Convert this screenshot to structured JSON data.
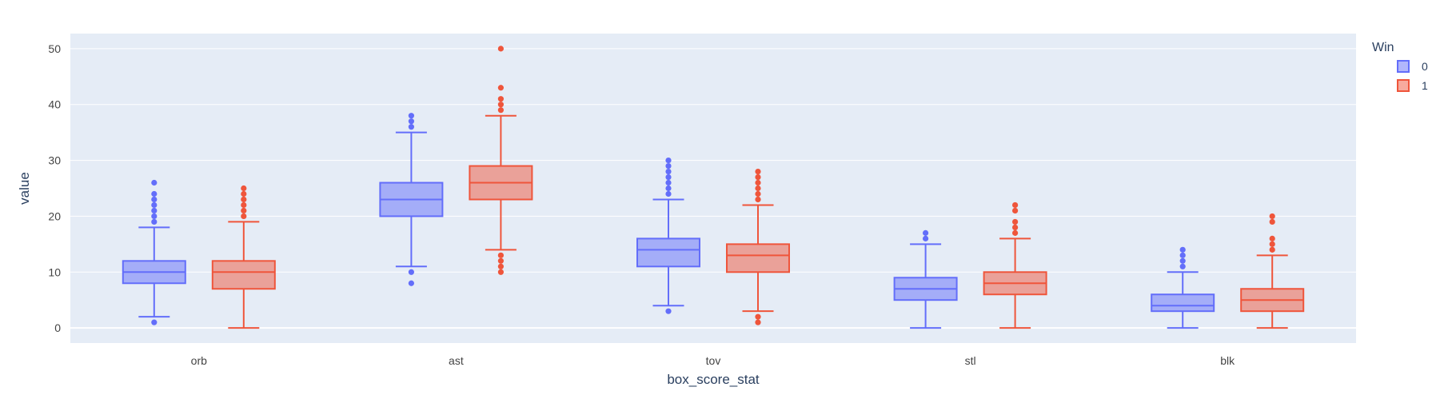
{
  "chart_data": {
    "type": "box",
    "xlabel": "box_score_stat",
    "ylabel": "value",
    "ylim": [
      -2.7,
      52.7
    ],
    "yticks": [
      0,
      10,
      20,
      30,
      40,
      50
    ],
    "grid": true,
    "legend_title": "Win",
    "legend_position": "top-right",
    "plot_background": "#e5ecf6",
    "categories": [
      "orb",
      "ast",
      "tov",
      "stl",
      "blk"
    ],
    "series": [
      {
        "name": "0",
        "color": "#636efa",
        "fill": "rgba(99,110,250,0.5)",
        "boxes": [
          {
            "min": 2,
            "q1": 8,
            "median": 10,
            "q3": 12,
            "max": 18,
            "outliers": [
              1,
              19,
              20,
              21,
              22,
              23,
              24,
              26
            ]
          },
          {
            "min": 11,
            "q1": 20,
            "median": 23,
            "q3": 26,
            "max": 35,
            "outliers": [
              8,
              10,
              36,
              37,
              38
            ]
          },
          {
            "min": 4,
            "q1": 11,
            "median": 14,
            "q3": 16,
            "max": 23,
            "outliers": [
              3,
              24,
              25,
              26,
              27,
              28,
              29,
              30
            ]
          },
          {
            "min": 0,
            "q1": 5,
            "median": 7,
            "q3": 9,
            "max": 15,
            "outliers": [
              16,
              17
            ]
          },
          {
            "min": 0,
            "q1": 3,
            "median": 4,
            "q3": 6,
            "max": 10,
            "outliers": [
              11,
              12,
              13,
              14
            ]
          }
        ]
      },
      {
        "name": "1",
        "color": "#ef553b",
        "fill": "rgba(239,85,59,0.5)",
        "boxes": [
          {
            "min": 0,
            "q1": 7,
            "median": 10,
            "q3": 12,
            "max": 19,
            "outliers": [
              20,
              21,
              22,
              23,
              24,
              25
            ]
          },
          {
            "min": 14,
            "q1": 23,
            "median": 26,
            "q3": 29,
            "max": 38,
            "outliers": [
              10,
              11,
              12,
              13,
              39,
              40,
              41,
              43,
              50
            ]
          },
          {
            "min": 3,
            "q1": 10,
            "median": 13,
            "q3": 15,
            "max": 22,
            "outliers": [
              1,
              2,
              23,
              24,
              25,
              26,
              27,
              28
            ]
          },
          {
            "min": 0,
            "q1": 6,
            "median": 8,
            "q3": 10,
            "max": 16,
            "outliers": [
              17,
              18,
              19,
              21,
              22
            ]
          },
          {
            "min": 0,
            "q1": 3,
            "median": 5,
            "q3": 7,
            "max": 13,
            "outliers": [
              14,
              15,
              16,
              19,
              20
            ]
          }
        ]
      }
    ]
  }
}
